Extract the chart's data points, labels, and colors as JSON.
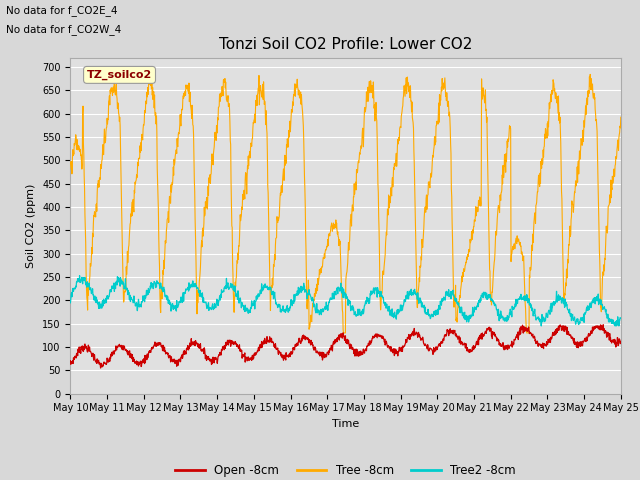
{
  "title": "Tonzi Soil CO2 Profile: Lower CO2",
  "xlabel": "Time",
  "ylabel": "Soil CO2 (ppm)",
  "annotation1": "No data for f_CO2E_4",
  "annotation2": "No data for f_CO2W_4",
  "legend_label": "TZ_soilco2",
  "ylim": [
    0,
    720
  ],
  "yticks": [
    0,
    50,
    100,
    150,
    200,
    250,
    300,
    350,
    400,
    450,
    500,
    550,
    600,
    650,
    700
  ],
  "xtick_labels": [
    "May 10",
    "May 11",
    "May 12",
    "May 13",
    "May 14",
    "May 15",
    "May 16",
    "May 17",
    "May 18",
    "May 19",
    "May 20",
    "May 21",
    "May 22",
    "May 23",
    "May 24",
    "May 25"
  ],
  "line_colors": {
    "open": "#cc0000",
    "tree": "#ffaa00",
    "tree2": "#00cccc"
  },
  "line_labels": [
    "Open -8cm",
    "Tree -8cm",
    "Tree2 -8cm"
  ],
  "background_color": "#d8d8d8",
  "axes_bg": "#e0e0e0",
  "grid_color": "#ffffff",
  "num_days": 15,
  "pts_per_day": 96,
  "title_fontsize": 11,
  "axis_fontsize": 8,
  "tick_fontsize": 7
}
